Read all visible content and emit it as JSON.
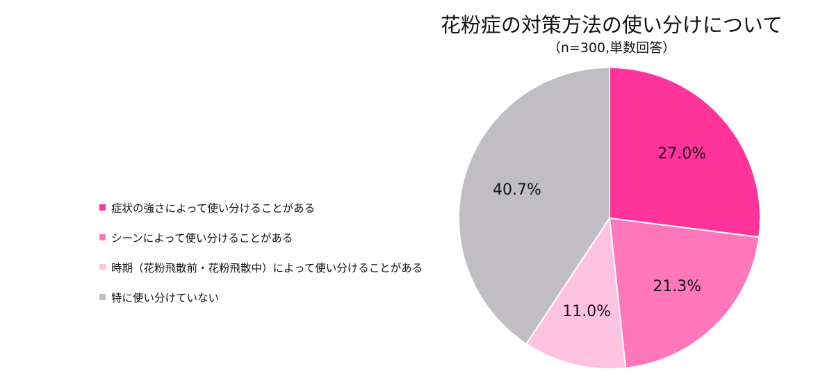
{
  "chart_data": {
    "type": "pie",
    "title": "花粉症の対策方法の使い分けについて",
    "subtitle": "（n=300,単数回答）",
    "legend_position": "left",
    "slices": [
      {
        "label": "症状の強さによって使い分けることがある",
        "value": 27.0,
        "value_label": "27.0%",
        "color": "#ff3399"
      },
      {
        "label": "シーンによって使い分けることがある",
        "value": 21.3,
        "value_label": "21.3%",
        "color": "#ff77bb"
      },
      {
        "label": "時期（花粉飛散前・花粉飛散中）によって使い分けることがある",
        "value": 11.0,
        "value_label": "11.0%",
        "color": "#ffc2e0"
      },
      {
        "label": "特に使い分けていない",
        "value": 40.7,
        "value_label": "40.7%",
        "color": "#c0bec2"
      }
    ]
  }
}
